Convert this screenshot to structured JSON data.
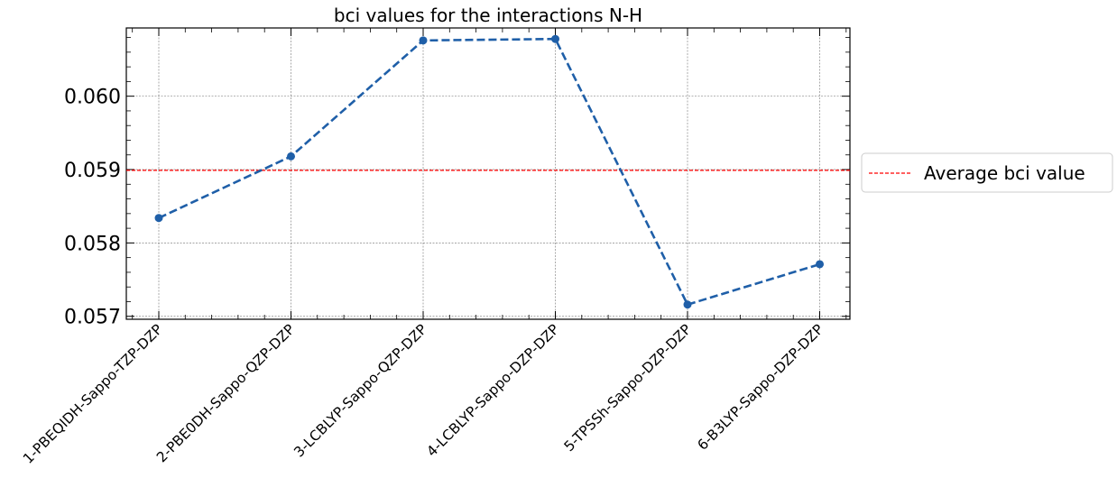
{
  "chart_data": {
    "type": "line",
    "title": "bci values for the interactions N-H",
    "xlabel": "",
    "ylabel": "",
    "categories": [
      "1-PBEQIDH-Sappo-TZP-DZP",
      "2-PBE0DH-Sappo-QZP-DZP",
      "3-LCBLYP-Sappo-QZP-DZP",
      "4-LCBLYP-Sappo-DZP-DZP",
      "5-TPSSh-Sappo-DZP-DZP",
      "6-B3LYP-Sappo-DZP-DZP"
    ],
    "series": [
      {
        "values": [
          0.05834,
          0.05918,
          0.06076,
          0.06078,
          0.05716,
          0.05771
        ],
        "color": "#1f5fa8",
        "line_style": "dashed",
        "marker": "circle"
      }
    ],
    "reference_line": {
      "label": "Average bci value",
      "value": 0.05899,
      "color": "#ff0000",
      "line_style": "dashed"
    },
    "ylim": [
      0.05696,
      0.06093
    ],
    "yticks": [
      0.057,
      0.058,
      0.059,
      0.06
    ],
    "ytick_labels": [
      "0.057",
      "0.058",
      "0.059",
      "0.060"
    ],
    "grid": true,
    "legend_position": "right, outside plot"
  }
}
